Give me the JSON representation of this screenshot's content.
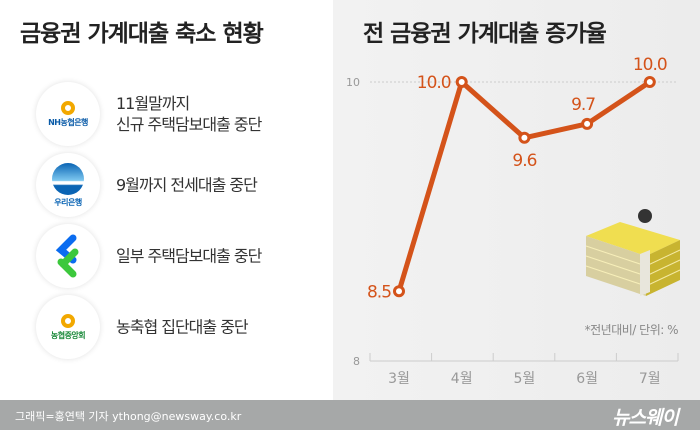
{
  "left": {
    "title": "금융권 가계대출 축소 현황",
    "items": [
      {
        "logo": "NH농협은행",
        "text": "11월말까지\n신규 주택담보대출 중단"
      },
      {
        "logo": "우리은행",
        "text": "9월까지 전세대출 중단"
      },
      {
        "logo": "SC제일은행",
        "text": "일부 주택담보대출 중단"
      },
      {
        "logo": "농협중앙회",
        "text": "농축협 집단대출 중단"
      }
    ]
  },
  "chart_data": {
    "type": "line",
    "title": "전 금융권 가계대출 증가율",
    "categories": [
      "3월",
      "4월",
      "5월",
      "6월",
      "7월"
    ],
    "series": [
      {
        "values": [
          8.5,
          10.0,
          9.6,
          9.7,
          10.0
        ],
        "labels": [
          "8.5",
          "10.0",
          "9.6",
          "9.7",
          "10.0"
        ]
      }
    ],
    "ylim": [
      8,
      10
    ],
    "yticks": [
      "8",
      "10"
    ],
    "note": "*전년대비/ 단위: %",
    "color": "#d4531a"
  },
  "footer": {
    "credit": "그래픽=홍연택 기자 ythong@newsway.co.kr",
    "brand": "뉴스웨이"
  }
}
